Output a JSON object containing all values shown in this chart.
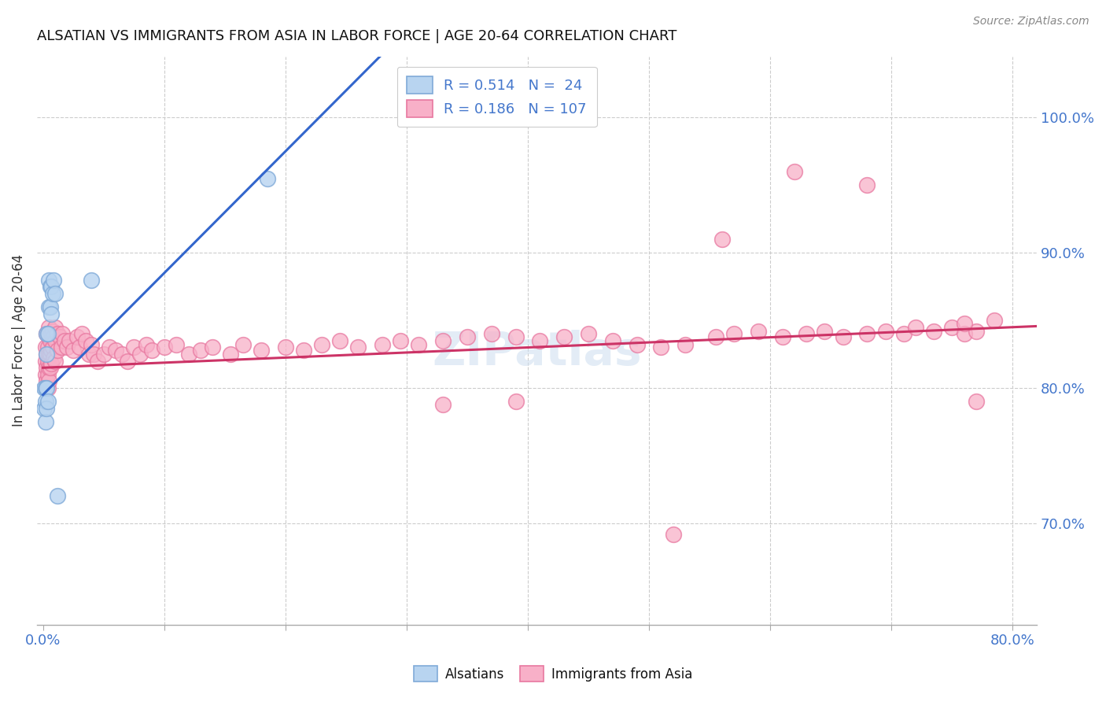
{
  "title": "ALSATIAN VS IMMIGRANTS FROM ASIA IN LABOR FORCE | AGE 20-64 CORRELATION CHART",
  "source": "Source: ZipAtlas.com",
  "ylabel": "In Labor Force | Age 20-64",
  "right_yticks": [
    0.7,
    0.8,
    0.9,
    1.0
  ],
  "right_ytick_labels": [
    "70.0%",
    "80.0%",
    "90.0%",
    "100.0%"
  ],
  "series1_name": "Alsatians",
  "series2_name": "Immigrants from Asia",
  "series1_fc": "#b8d4f0",
  "series1_ec": "#80aad8",
  "series2_fc": "#f8b0c8",
  "series2_ec": "#e878a0",
  "trendline1_color": "#3366cc",
  "trendline2_color": "#cc3366",
  "legend_fc1": "#b8d4f0",
  "legend_fc2": "#f8b0c8",
  "xmin": -0.005,
  "xmax": 0.82,
  "ymin": 0.625,
  "ymax": 1.045,
  "alsatians_x": [
    0.001,
    0.001,
    0.002,
    0.002,
    0.002,
    0.003,
    0.003,
    0.003,
    0.003,
    0.004,
    0.004,
    0.005,
    0.005,
    0.006,
    0.006,
    0.007,
    0.007,
    0.008,
    0.009,
    0.01,
    0.012,
    0.04,
    0.185,
    0.425
  ],
  "alsatians_y": [
    0.8,
    0.785,
    0.8,
    0.79,
    0.775,
    0.84,
    0.825,
    0.8,
    0.785,
    0.79,
    0.84,
    0.86,
    0.88,
    0.875,
    0.86,
    0.875,
    0.855,
    0.87,
    0.88,
    0.87,
    0.72,
    0.88,
    0.955,
    1.005
  ],
  "asia_x": [
    0.002,
    0.002,
    0.002,
    0.003,
    0.003,
    0.003,
    0.003,
    0.004,
    0.004,
    0.004,
    0.004,
    0.004,
    0.005,
    0.005,
    0.005,
    0.005,
    0.005,
    0.006,
    0.006,
    0.006,
    0.007,
    0.007,
    0.007,
    0.008,
    0.008,
    0.009,
    0.009,
    0.01,
    0.01,
    0.01,
    0.012,
    0.012,
    0.014,
    0.015,
    0.016,
    0.018,
    0.02,
    0.022,
    0.025,
    0.028,
    0.03,
    0.032,
    0.035,
    0.038,
    0.04,
    0.042,
    0.045,
    0.05,
    0.055,
    0.06,
    0.065,
    0.07,
    0.075,
    0.08,
    0.085,
    0.09,
    0.1,
    0.11,
    0.12,
    0.13,
    0.14,
    0.155,
    0.165,
    0.18,
    0.2,
    0.215,
    0.23,
    0.245,
    0.26,
    0.28,
    0.295,
    0.31,
    0.33,
    0.35,
    0.37,
    0.39,
    0.41,
    0.43,
    0.45,
    0.47,
    0.49,
    0.51,
    0.53,
    0.555,
    0.57,
    0.59,
    0.61,
    0.63,
    0.645,
    0.66,
    0.68,
    0.695,
    0.71,
    0.72,
    0.735,
    0.75,
    0.76,
    0.77,
    0.76,
    0.785,
    0.52,
    0.39,
    0.33,
    0.62,
    0.68,
    0.56,
    0.77
  ],
  "asia_y": [
    0.83,
    0.82,
    0.81,
    0.84,
    0.825,
    0.815,
    0.805,
    0.84,
    0.83,
    0.82,
    0.81,
    0.8,
    0.845,
    0.838,
    0.825,
    0.815,
    0.805,
    0.835,
    0.825,
    0.815,
    0.84,
    0.828,
    0.818,
    0.842,
    0.83,
    0.838,
    0.822,
    0.845,
    0.835,
    0.82,
    0.84,
    0.828,
    0.838,
    0.83,
    0.84,
    0.835,
    0.83,
    0.835,
    0.828,
    0.838,
    0.83,
    0.84,
    0.835,
    0.825,
    0.832,
    0.825,
    0.82,
    0.825,
    0.83,
    0.828,
    0.825,
    0.82,
    0.83,
    0.825,
    0.832,
    0.828,
    0.83,
    0.832,
    0.825,
    0.828,
    0.83,
    0.825,
    0.832,
    0.828,
    0.83,
    0.828,
    0.832,
    0.835,
    0.83,
    0.832,
    0.835,
    0.832,
    0.835,
    0.838,
    0.84,
    0.838,
    0.835,
    0.838,
    0.84,
    0.835,
    0.832,
    0.83,
    0.832,
    0.838,
    0.84,
    0.842,
    0.838,
    0.84,
    0.842,
    0.838,
    0.84,
    0.842,
    0.84,
    0.845,
    0.842,
    0.845,
    0.84,
    0.842,
    0.848,
    0.85,
    0.692,
    0.79,
    0.788,
    0.96,
    0.95,
    0.91,
    0.79
  ]
}
